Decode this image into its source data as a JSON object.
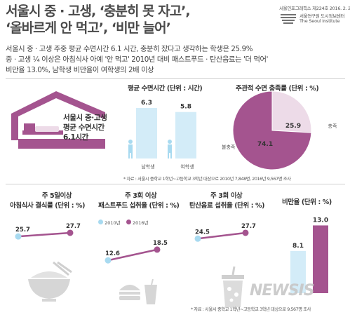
{
  "header": {
    "title_line1": "서울시 중 · 고생, ‘충분히 못 자고’,",
    "title_line2": "‘올바르게 안 먹고’, ‘비만 늘어’",
    "publication": "서울인포그래픽스 제224호 2016. 2. 27.",
    "org_line1": "서울연구원 도시정보센터",
    "org_line2": "The Seoul Institute"
  },
  "intro": {
    "line1": "서울시 중 · 고생 주중 평균 수면시간 6.1 시간, 충분히 잤다고 생각하는 학생은 25.9%",
    "line2": "중 · 고생 ¼ 이상은 아침식사 아예 '안 먹고' 2010년 대비 패스트푸드 · 탄산음료는 '더 먹어'",
    "line3": "비만율 13.0%, 남학생 비만율이 여학생의 2배 이상"
  },
  "house_text": {
    "line1": "서울시 중·고생",
    "line2": "평균 수면시간",
    "line3": "6.1시간"
  },
  "notes": {
    "top": "* 자료 : 서울시 중학교 1학년~고등학교 3학년 대상으로 2010년 7,848명, 2016년 9,567명 조사",
    "bottom": "* 자료 : 서울시 중학교 1학년~고등학교 3학년 대상으로 9,567명 조사"
  },
  "legend": {
    "y2010": "2010년",
    "y2016": "2016년",
    "color_2010": "#a8daf0",
    "color_2016": "#a4548f"
  },
  "colors": {
    "blue_bar": "#d3ecf8",
    "blue_dot": "#a8daf0",
    "purple": "#a4548f",
    "pie_light": "#eddbe8",
    "icon_gray": "#d9d9d9"
  },
  "chart_data": [
    {
      "type": "bar",
      "title": "평균 수면시간 (단위 : 시간)",
      "categories": [
        "남학생",
        "여학생"
      ],
      "values": [
        6.3,
        5.8
      ],
      "ylim": [
        0,
        7
      ]
    },
    {
      "type": "pie",
      "title": "주관적 수면 충족률 (단위 : %)",
      "labels": [
        "충족",
        "불충족"
      ],
      "values": [
        25.9,
        74.1
      ]
    },
    {
      "type": "line",
      "title_line1": "주 5일이상",
      "title_line2": "아침식사 결식률 (단위 : %)",
      "x": [
        "2010년",
        "2016년"
      ],
      "values": [
        25.7,
        27.7
      ]
    },
    {
      "type": "line",
      "title_line1": "주 3회 이상",
      "title_line2": "패스트푸드 섭취율 (단위 : %)",
      "x": [
        "2010년",
        "2016년"
      ],
      "values": [
        12.6,
        18.5
      ]
    },
    {
      "type": "line",
      "title_line1": "주 3회 이상",
      "title_line2": "탄산음료 섭취율 (단위 : %)",
      "x": [
        "2010년",
        "2016년"
      ],
      "values": [
        24.5,
        27.7
      ]
    },
    {
      "type": "bar",
      "title": "비만율 (단위 : %)",
      "categories": [
        "2010년",
        "2016년"
      ],
      "values": [
        8.1,
        13.0
      ],
      "ylim": [
        0,
        14
      ]
    }
  ],
  "watermark": "NEWSIS"
}
